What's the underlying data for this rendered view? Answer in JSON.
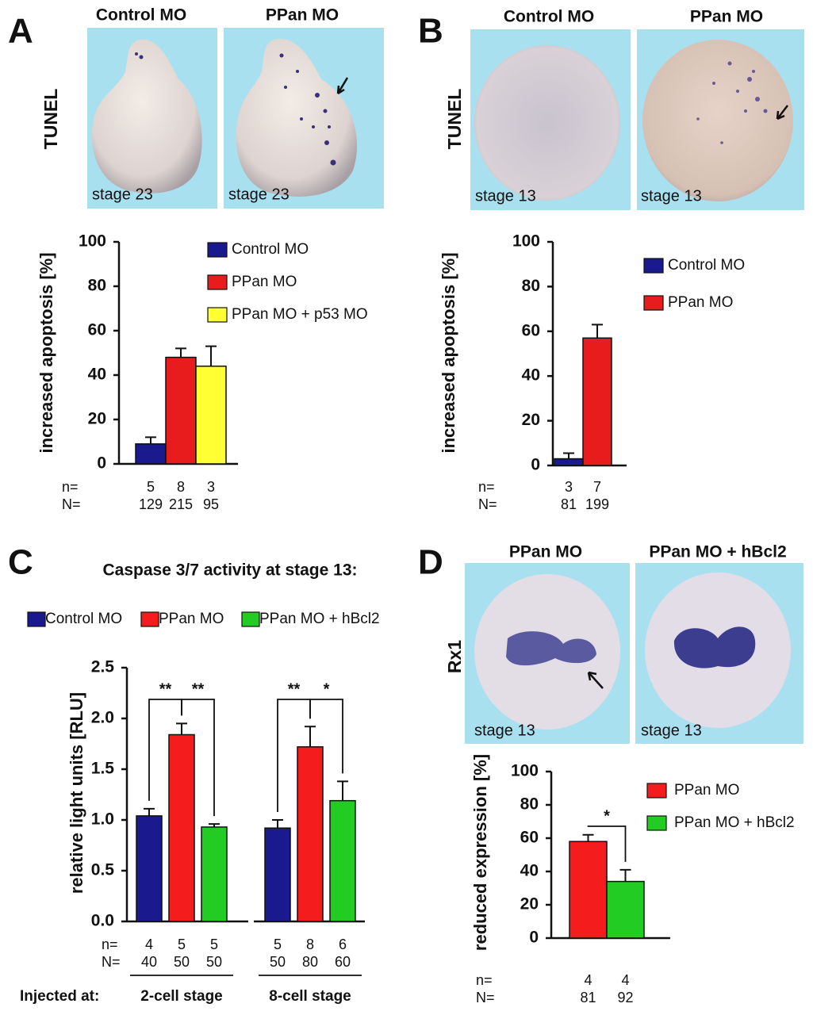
{
  "panel_labels": [
    "A",
    "B",
    "C",
    "D"
  ],
  "image_panels": [
    {
      "row_label": "TUNEL",
      "frames": [
        {
          "title": "Control MO",
          "stage": "stage 23"
        },
        {
          "title": "PPan MO",
          "stage": "stage 23"
        }
      ]
    },
    {
      "row_label": "TUNEL",
      "frames": [
        {
          "title": "Control MO",
          "stage": "stage 13"
        },
        {
          "title": "PPan MO",
          "stage": "stage 13"
        }
      ]
    },
    {
      "row_label": "Rx1",
      "frames": [
        {
          "title": "PPan MO",
          "stage": "stage 13"
        },
        {
          "title": "PPan MO + hBcl2",
          "stage": "stage 13"
        }
      ]
    }
  ],
  "chart_data": [
    {
      "type": "bar",
      "ylabel": "increased apoptosis [%]",
      "categories": [
        null
      ],
      "n_label": "n=",
      "N_label": "N=",
      "series": [
        {
          "name": "Control MO",
          "color": "#1a1a8e",
          "values": [
            9
          ],
          "errors": [
            3
          ],
          "n": [
            5
          ],
          "N": [
            129
          ]
        },
        {
          "name": "PPan MO",
          "color": "#e81c1c",
          "values": [
            48
          ],
          "errors": [
            4
          ],
          "n": [
            8
          ],
          "N": [
            215
          ]
        },
        {
          "name": "PPan MO + p53 MO",
          "color": "#ffff33",
          "values": [
            44
          ],
          "errors": [
            9
          ],
          "n": [
            3
          ],
          "N": [
            95
          ]
        }
      ],
      "ylim": [
        0,
        100
      ],
      "yticks": [
        0,
        20,
        40,
        60,
        80,
        100
      ]
    },
    {
      "type": "bar",
      "ylabel": "increased apoptosis [%]",
      "categories": [
        null
      ],
      "n_label": "n=",
      "N_label": "N=",
      "series": [
        {
          "name": "Control MO",
          "color": "#1a1a8e",
          "values": [
            3
          ],
          "errors": [
            2.5
          ],
          "n": [
            3
          ],
          "N": [
            81
          ]
        },
        {
          "name": "PPan MO",
          "color": "#e81c1c",
          "values": [
            57
          ],
          "errors": [
            6
          ],
          "n": [
            7
          ],
          "N": [
            199
          ]
        }
      ],
      "ylim": [
        0,
        100
      ],
      "yticks": [
        0,
        20,
        40,
        60,
        80,
        100
      ]
    },
    {
      "type": "bar",
      "title": "Caspase 3/7 activity at stage 13:",
      "ylabel": "relative light units [RLU]",
      "xlabel": "Injected at:",
      "categories": [
        "2-cell stage",
        "8-cell stage"
      ],
      "n_label": "n=",
      "N_label": "N=",
      "series": [
        {
          "name": "Control MO",
          "color": "#1a1a8e",
          "values": [
            1.04,
            0.92
          ],
          "errors": [
            0.07,
            0.08
          ],
          "n": [
            4,
            5
          ],
          "N": [
            40,
            50
          ]
        },
        {
          "name": "PPan MO",
          "color": "#f41c1c",
          "values": [
            1.84,
            1.72
          ],
          "errors": [
            0.11,
            0.2
          ],
          "n": [
            5,
            8
          ],
          "N": [
            50,
            80
          ]
        },
        {
          "name": "PPan MO + hBcl2",
          "color": "#22cc22",
          "values": [
            0.93,
            1.19
          ],
          "errors": [
            0.03,
            0.19
          ],
          "n": [
            5,
            6
          ],
          "N": [
            50,
            60
          ]
        }
      ],
      "significance": [
        "**",
        "**",
        "**",
        "*"
      ],
      "ylim": [
        0,
        2.5
      ],
      "yticks": [
        {
          "value": 0,
          "label": "0.0"
        },
        0.5,
        {
          "value": 1,
          "label": "1.0"
        },
        1.5,
        {
          "value": 2,
          "label": "2.0"
        },
        2.5
      ]
    },
    {
      "type": "bar",
      "ylabel": "reduced expression [%]",
      "categories": [
        null
      ],
      "n_label": "n=",
      "N_label": "N=",
      "series": [
        {
          "name": "PPan MO",
          "color": "#f41c1c",
          "values": [
            58
          ],
          "errors": [
            4
          ],
          "n": [
            4
          ],
          "N": [
            81
          ]
        },
        {
          "name": "PPan MO + hBcl2",
          "color": "#22cc22",
          "values": [
            34
          ],
          "errors": [
            7
          ],
          "n": [
            4
          ],
          "N": [
            92
          ]
        }
      ],
      "significance": [
        "*"
      ],
      "ylim": [
        0,
        100
      ],
      "yticks": [
        0,
        20,
        40,
        60,
        80,
        100
      ]
    }
  ]
}
